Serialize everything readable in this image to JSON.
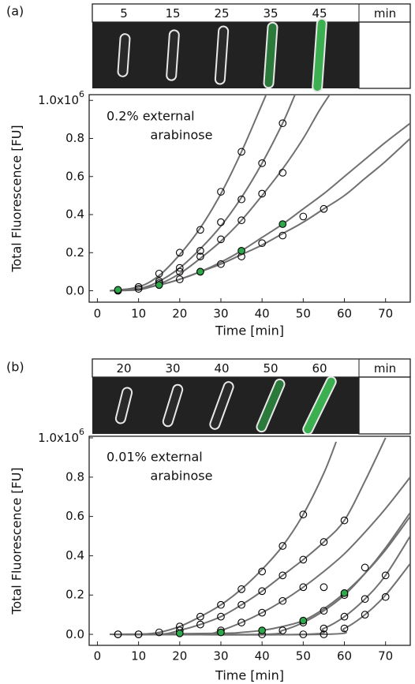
{
  "chart_data": [
    {
      "type": "scatter",
      "panel_label": "(a)",
      "image_times": [
        "5",
        "15",
        "25",
        "35",
        "45"
      ],
      "image_unit": "min",
      "annotation": [
        "0.2% external",
        "arabinose"
      ],
      "x_label": "Time [min]",
      "y_label": "Total Fluorescence [FU]",
      "xlim": [
        -2,
        76
      ],
      "ylim": [
        -0.06,
        1.03
      ],
      "xticks": [
        0,
        10,
        20,
        30,
        40,
        50,
        60,
        70
      ],
      "yticks": [
        {
          "value": 0,
          "label": "0.0"
        },
        0.2,
        0.4,
        0.6,
        0.8,
        {
          "value": 1.0,
          "label": "1.0x10",
          "exponent": "6"
        }
      ],
      "fit_color": "#707070",
      "series": [
        {
          "color": "#000000",
          "fill": "none",
          "x": [
            5,
            10,
            15,
            20,
            25,
            30,
            35
          ],
          "values": [
            0,
            0.02,
            0.09,
            0.2,
            0.32,
            0.52,
            0.73
          ],
          "fit": {
            "x": [
              3,
              10,
              15,
              20,
              25,
              30,
              35,
              40,
              42
            ],
            "values": [
              0,
              0.02,
              0.08,
              0.19,
              0.33,
              0.51,
              0.73,
              0.98,
              1.08
            ]
          }
        },
        {
          "color": "#000000",
          "fill": "none",
          "x": [
            10,
            15,
            20,
            25,
            30,
            35,
            40,
            45
          ],
          "values": [
            0.01,
            0.05,
            0.12,
            0.21,
            0.36,
            0.48,
            0.67,
            0.88
          ],
          "fit": {
            "x": [
              3,
              10,
              15,
              20,
              25,
              30,
              35,
              40,
              45,
              48
            ],
            "values": [
              0,
              0.01,
              0.05,
              0.12,
              0.22,
              0.34,
              0.49,
              0.67,
              0.88,
              1.03
            ]
          }
        },
        {
          "color": "#000000",
          "fill": "none",
          "x": [
            15,
            20,
            25,
            30,
            35,
            40,
            45
          ],
          "values": [
            0.04,
            0.1,
            0.18,
            0.27,
            0.37,
            0.51,
            0.62
          ],
          "fit": {
            "x": [
              3,
              10,
              15,
              20,
              25,
              30,
              35,
              40,
              45,
              50,
              54,
              58
            ],
            "values": [
              0,
              0.005,
              0.035,
              0.09,
              0.17,
              0.26,
              0.37,
              0.5,
              0.64,
              0.8,
              0.95,
              1.08
            ]
          }
        },
        {
          "color": "#000000",
          "fill": "none",
          "x": [
            20,
            25,
            30,
            35,
            40,
            45,
            50,
            55
          ],
          "values": [
            0.06,
            0.1,
            0.14,
            0.18,
            0.25,
            0.29,
            0.39,
            0.43
          ],
          "fit": {
            "x": [
              3,
              10,
              15,
              20,
              25,
              30,
              35,
              40,
              45,
              50,
              55,
              60,
              65,
              70,
              76
            ],
            "values": [
              0,
              0.01,
              0.03,
              0.06,
              0.1,
              0.14,
              0.19,
              0.24,
              0.3,
              0.36,
              0.43,
              0.5,
              0.59,
              0.68,
              0.8
            ]
          }
        },
        {
          "color": "#000000",
          "fill": "#2ea84a",
          "x": [
            5,
            15,
            25,
            35,
            45
          ],
          "values": [
            0.005,
            0.03,
            0.1,
            0.21,
            0.35
          ],
          "fit": {
            "x": [
              3,
              10,
              15,
              20,
              25,
              30,
              35,
              40,
              45,
              50,
              55,
              60,
              65,
              70,
              76
            ],
            "values": [
              0,
              0.01,
              0.03,
              0.06,
              0.1,
              0.15,
              0.21,
              0.28,
              0.35,
              0.43,
              0.51,
              0.6,
              0.69,
              0.78,
              0.88
            ]
          }
        }
      ]
    },
    {
      "type": "scatter",
      "panel_label": "(b)",
      "image_times": [
        "20",
        "30",
        "40",
        "50",
        "60"
      ],
      "image_unit": "min",
      "annotation": [
        "0.01% external",
        "arabinose"
      ],
      "x_label": "Time [min]",
      "y_label": "Total Fluorescence [FU]",
      "xlim": [
        -2,
        76
      ],
      "ylim": [
        -0.056,
        1.008
      ],
      "xticks": [
        0,
        10,
        20,
        30,
        40,
        50,
        60,
        70
      ],
      "yticks": [
        {
          "value": 0,
          "label": "0.0"
        },
        0.2,
        0.4,
        0.6,
        0.8,
        {
          "value": 1.0,
          "label": "1.0x10",
          "exponent": "6"
        }
      ],
      "fit_color": "#707070",
      "series": [
        {
          "color": "#000000",
          "fill": "none",
          "x": [
            5,
            10,
            15,
            20,
            25,
            30,
            35,
            40,
            45,
            50
          ],
          "values": [
            0,
            0,
            0.01,
            0.04,
            0.09,
            0.15,
            0.23,
            0.32,
            0.45,
            0.61
          ],
          "fit": {
            "x": [
              3,
              10,
              15,
              20,
              25,
              30,
              35,
              40,
              45,
              50,
              55,
              58
            ],
            "values": [
              0,
              0,
              0.01,
              0.04,
              0.09,
              0.15,
              0.23,
              0.33,
              0.45,
              0.61,
              0.82,
              0.98
            ]
          }
        },
        {
          "color": "#000000",
          "fill": "none",
          "x": [
            5,
            10,
            20,
            25,
            30,
            35,
            40,
            45,
            50,
            55,
            60
          ],
          "values": [
            0,
            0,
            0.02,
            0.05,
            0.09,
            0.15,
            0.22,
            0.3,
            0.38,
            0.47,
            0.58
          ],
          "fit": {
            "x": [
              3,
              15,
              20,
              25,
              30,
              35,
              40,
              45,
              50,
              55,
              60,
              65,
              70
            ],
            "values": [
              0,
              0,
              0.02,
              0.05,
              0.09,
              0.15,
              0.22,
              0.3,
              0.38,
              0.47,
              0.58,
              0.78,
              1.0
            ]
          }
        },
        {
          "color": "#000000",
          "fill": "none",
          "x": [
            30,
            35,
            40,
            45,
            50,
            55
          ],
          "values": [
            0.02,
            0.06,
            0.11,
            0.17,
            0.24,
            0.24
          ],
          "fit": {
            "x": [
              3,
              25,
              30,
              35,
              40,
              45,
              50,
              55,
              60,
              65,
              70,
              76
            ],
            "values": [
              0,
              0,
              0.02,
              0.06,
              0.11,
              0.17,
              0.24,
              0.32,
              0.41,
              0.52,
              0.64,
              0.8
            ]
          }
        },
        {
          "color": "#000000",
          "fill": "none",
          "x": [
            40,
            45,
            50,
            55,
            60,
            65
          ],
          "values": [
            0,
            0.02,
            0.06,
            0.12,
            0.2,
            0.34
          ],
          "fit": {
            "x": [
              3,
              40,
              45,
              50,
              55,
              60,
              65,
              70,
              76
            ],
            "values": [
              0,
              0,
              0.02,
              0.06,
              0.12,
              0.2,
              0.31,
              0.44,
              0.62
            ]
          }
        },
        {
          "color": "#000000",
          "fill": "none",
          "x": [
            50,
            55,
            60,
            65,
            70
          ],
          "values": [
            0,
            0.03,
            0.09,
            0.18,
            0.3
          ],
          "fit": {
            "x": [
              3,
              50,
              55,
              60,
              65,
              70,
              76
            ],
            "values": [
              0,
              0,
              0.03,
              0.09,
              0.18,
              0.3,
              0.5
            ]
          }
        },
        {
          "color": "#000000",
          "fill": "none",
          "x": [
            55,
            60,
            65,
            70
          ],
          "values": [
            0,
            0.03,
            0.1,
            0.19
          ],
          "fit": {
            "x": [
              3,
              55,
              60,
              65,
              70,
              76
            ],
            "values": [
              0,
              0,
              0.03,
              0.1,
              0.2,
              0.36
            ]
          }
        },
        {
          "color": "#000000",
          "fill": "#2ea84a",
          "x": [
            20,
            30,
            40,
            50,
            60
          ],
          "values": [
            0.005,
            0.01,
            0.02,
            0.07,
            0.21
          ],
          "fit": {
            "x": [
              3,
              30,
              35,
              40,
              45,
              50,
              55,
              60,
              65,
              70,
              76
            ],
            "values": [
              0,
              0.005,
              0.01,
              0.02,
              0.04,
              0.07,
              0.13,
              0.21,
              0.31,
              0.43,
              0.6
            ]
          }
        }
      ]
    }
  ]
}
